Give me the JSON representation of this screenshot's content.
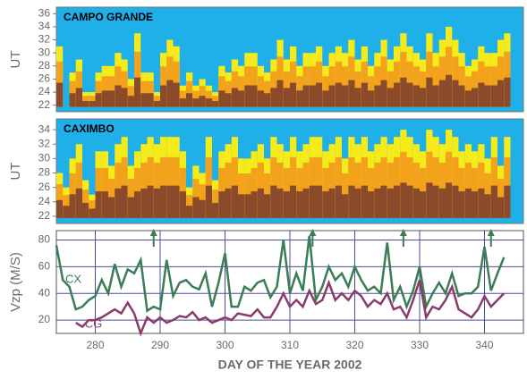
{
  "chart_data": [
    {
      "type": "heatmap",
      "title": "CAMPO GRANDE",
      "ylabel": "UT",
      "x": [
        274,
        275,
        276,
        277,
        278,
        279,
        280,
        281,
        282,
        283,
        284,
        285,
        286,
        287,
        288,
        289,
        290,
        291,
        292,
        293,
        294,
        295,
        296,
        297,
        298,
        299,
        300,
        301,
        302,
        303,
        304,
        305,
        306,
        307,
        308,
        309,
        310,
        311,
        312,
        313,
        314,
        315,
        316,
        317,
        318,
        319,
        320,
        321,
        322,
        323,
        324,
        325,
        326,
        327,
        328,
        329,
        330,
        331,
        332,
        333,
        334,
        335,
        336,
        337,
        338,
        339,
        340,
        341,
        342,
        343
      ],
      "values": [
        31,
        null,
        27,
        29,
        24,
        24,
        27,
        28,
        28,
        30,
        29,
        26,
        33,
        27,
        27,
        24,
        30,
        32,
        31,
        25,
        27,
        25,
        26,
        25,
        24,
        28,
        27,
        29,
        28,
        30,
        30,
        28,
        27,
        29,
        32,
        29,
        31,
        28,
        30,
        30,
        31,
        28,
        30,
        31,
        30,
        32,
        29,
        31,
        28,
        30,
        32,
        29,
        31,
        33,
        31,
        30,
        29,
        33,
        30,
        32,
        34,
        32,
        30,
        28,
        29,
        31,
        30,
        30,
        32,
        33
      ],
      "xlim": [
        274,
        346
      ],
      "ylim": [
        21,
        37
      ],
      "yticks": [
        22,
        24,
        26,
        28,
        30,
        32,
        34,
        36
      ]
    },
    {
      "type": "heatmap",
      "title": "CAXIMBO",
      "ylabel": "UT",
      "x": [
        274,
        275,
        276,
        277,
        278,
        279,
        280,
        281,
        282,
        283,
        284,
        285,
        286,
        287,
        288,
        289,
        290,
        291,
        292,
        293,
        294,
        295,
        296,
        297,
        298,
        299,
        300,
        301,
        302,
        303,
        304,
        305,
        306,
        307,
        308,
        309,
        310,
        311,
        312,
        313,
        314,
        315,
        316,
        317,
        318,
        319,
        320,
        321,
        322,
        323,
        324,
        325,
        326,
        327,
        328,
        329,
        330,
        331,
        332,
        333,
        334,
        335,
        336,
        337,
        338,
        339,
        340,
        341,
        342,
        343
      ],
      "values": [
        28,
        26,
        30,
        32,
        27,
        25,
        31,
        31,
        29,
        32,
        33,
        29,
        31,
        32,
        33,
        32,
        33,
        33,
        33,
        31,
        26,
        29,
        28,
        33,
        27,
        31,
        32,
        33,
        30,
        30,
        31,
        32,
        30,
        33,
        32,
        31,
        33,
        31,
        32,
        33,
        33,
        31,
        32,
        33,
        30,
        33,
        32,
        33,
        31,
        32,
        33,
        32,
        33,
        34,
        33,
        32,
        31,
        34,
        33,
        32,
        34,
        33,
        31,
        32,
        31,
        32,
        30,
        33,
        29,
        33
      ],
      "xlim": [
        274,
        346
      ],
      "ylim": [
        21,
        35.5
      ],
      "yticks": [
        22,
        24,
        26,
        28,
        30,
        32,
        34
      ]
    },
    {
      "type": "line",
      "xlabel": "DAY OF THE YEAR 2002",
      "ylabel": "Vzp (M/S)",
      "x": [
        274,
        275,
        276,
        277,
        278,
        279,
        280,
        281,
        282,
        283,
        284,
        285,
        286,
        287,
        288,
        289,
        290,
        291,
        292,
        293,
        294,
        295,
        296,
        297,
        298,
        299,
        300,
        301,
        302,
        303,
        304,
        305,
        306,
        307,
        308,
        309,
        310,
        311,
        312,
        313,
        314,
        315,
        316,
        317,
        318,
        319,
        320,
        321,
        322,
        323,
        324,
        325,
        326,
        327,
        328,
        329,
        330,
        331,
        332,
        333,
        334,
        335,
        336,
        337,
        338,
        339,
        340,
        341,
        342,
        343
      ],
      "series": [
        {
          "name": "CX",
          "color": "#3b7d55",
          "values": [
            76,
            50,
            45,
            28,
            30,
            35,
            38,
            50,
            40,
            62,
            45,
            58,
            55,
            65,
            27,
            30,
            28,
            65,
            38,
            48,
            50,
            45,
            43,
            55,
            30,
            48,
            70,
            30,
            30,
            45,
            42,
            48,
            50,
            37,
            45,
            80,
            40,
            55,
            42,
            83,
            35,
            45,
            60,
            50,
            55,
            45,
            60,
            50,
            42,
            45,
            40,
            78,
            35,
            45,
            30,
            42,
            60,
            30,
            40,
            48,
            40,
            55,
            38,
            40,
            40,
            45,
            75,
            42,
            55,
            67
          ]
        },
        {
          "name": "CG",
          "color": "#8a3b6c",
          "values": [
            null,
            null,
            null,
            18,
            15,
            20,
            20,
            22,
            25,
            28,
            25,
            33,
            25,
            10,
            22,
            18,
            22,
            18,
            20,
            23,
            22,
            26,
            20,
            22,
            18,
            20,
            22,
            20,
            25,
            24,
            23,
            28,
            22,
            22,
            30,
            40,
            30,
            35,
            30,
            42,
            32,
            35,
            48,
            35,
            40,
            35,
            42,
            38,
            30,
            35,
            32,
            40,
            28,
            30,
            22,
            35,
            50,
            22,
            30,
            28,
            35,
            45,
            28,
            25,
            22,
            28,
            38,
            30,
            35,
            40
          ]
        }
      ],
      "arrow_days": [
        289,
        313.5,
        327.5,
        341
      ],
      "xlim": [
        274,
        346
      ],
      "ylim": [
        10,
        87
      ],
      "xticks": [
        280,
        290,
        300,
        310,
        320,
        330,
        340
      ],
      "yticks": [
        20,
        40,
        60,
        80
      ],
      "grid": true
    }
  ]
}
